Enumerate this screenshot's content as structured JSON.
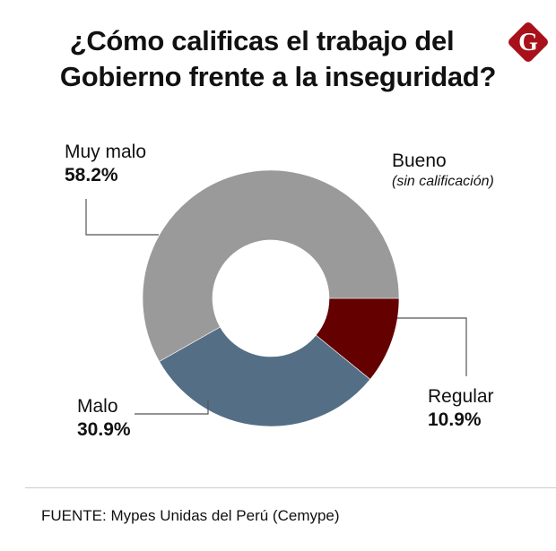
{
  "title_line1": "¿Cómo calificas el trabajo del",
  "title_line2": "Gobierno frente a la inseguridad?",
  "logo_letter": "G",
  "source": "FUENTE: Mypes Unidas del Perú (Cemype)",
  "chart_data": {
    "type": "pie",
    "variant": "donut",
    "title": "¿Cómo calificas el trabajo del Gobierno frente a la inseguridad?",
    "slices": [
      {
        "label": "Regular",
        "value": 10.9,
        "value_label": "10.9%",
        "color": "#640000"
      },
      {
        "label": "Malo",
        "value": 30.9,
        "value_label": "30.9%",
        "color": "#546e86"
      },
      {
        "label": "Muy malo",
        "value": 58.2,
        "value_label": "58.2%",
        "color": "#9a9a9a"
      },
      {
        "label": "Bueno",
        "value": 0,
        "value_label": "(sin calificación)",
        "color": "#9a9a9a"
      }
    ]
  }
}
